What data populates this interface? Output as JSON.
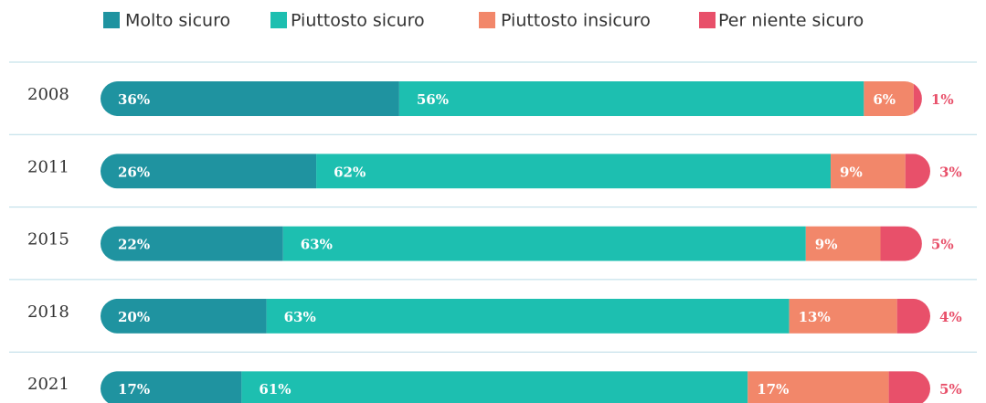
{
  "chart_data": {
    "type": "stacked-bar-horizontal",
    "categories": [
      "2008",
      "2011",
      "2015",
      "2018",
      "2021"
    ],
    "xlim": [
      0,
      100
    ],
    "legend": "top",
    "series": [
      {
        "name": "Molto sicuro",
        "color": "#1f93a0",
        "values": [
          36,
          26,
          22,
          20,
          17
        ],
        "value_labels": [
          "36%",
          "26%",
          "22%",
          "20%",
          "17%"
        ]
      },
      {
        "name": "Piuttosto sicuro",
        "color": "#1dbfb0",
        "values": [
          56,
          62,
          63,
          63,
          61
        ],
        "value_labels": [
          "56%",
          "62%",
          "63%",
          "63%",
          "61%"
        ]
      },
      {
        "name": "Piuttosto insicuro",
        "color": "#f2876a",
        "values": [
          6,
          9,
          9,
          13,
          17
        ],
        "value_labels": [
          "6%",
          "9%",
          "9%",
          "13%",
          "17%"
        ]
      },
      {
        "name": "Per niente sicuro",
        "color": "#e8506a",
        "values": [
          1,
          3,
          5,
          4,
          5
        ],
        "value_labels": [
          "1%",
          "3%",
          "5%",
          "4%",
          "5%"
        ]
      }
    ]
  }
}
